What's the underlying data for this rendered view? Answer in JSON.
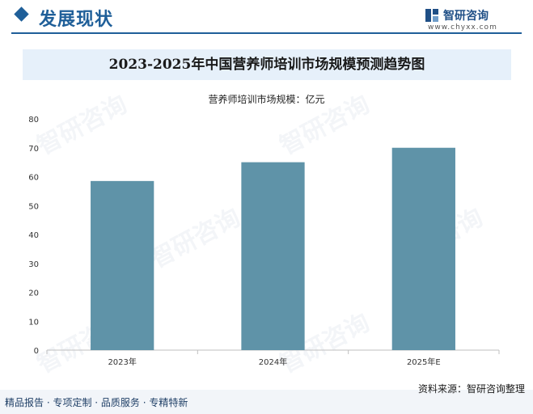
{
  "header": {
    "title": "发展现状",
    "brand_name": "智研咨询",
    "brand_url": "www.chyxx.com"
  },
  "chart_data": {
    "type": "bar",
    "title": "2023-2025年中国营养师培训市场规模预测趋势图",
    "subtitle": "营养师培训市场规模：亿元",
    "categories": [
      "2023年",
      "2024年",
      "2025年E"
    ],
    "values": [
      58.5,
      65,
      70
    ],
    "ylim": [
      0,
      80
    ],
    "yticks": [
      0,
      10,
      20,
      30,
      40,
      50,
      60,
      70,
      80
    ],
    "grid": false,
    "bar_color": "#5f93a8"
  },
  "footer": {
    "left": "精品报告 · 专项定制 · 品质服务 · 专精特新",
    "source": "资料来源：智研咨询整理"
  },
  "watermark": {
    "text": "智研咨询"
  }
}
